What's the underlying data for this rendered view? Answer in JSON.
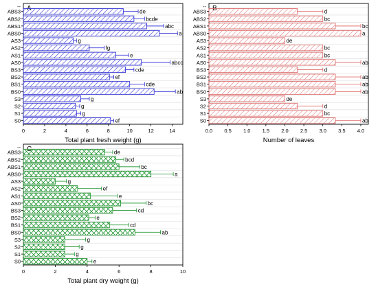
{
  "chart_data": [
    {
      "type": "bar",
      "orientation": "horizontal",
      "panel_label": "A",
      "top_label": "--",
      "xlabel": "Total plant fresh weight (g)",
      "xlim": [
        0,
        15
      ],
      "xticks": [
        "0",
        "2",
        "4",
        "6",
        "8",
        "10",
        "12",
        "14"
      ],
      "categories": [
        "ABS3",
        "ABS2",
        "ABS1",
        "ABS0",
        "AS3",
        "AS2",
        "AS1",
        "AS0",
        "BS3",
        "BS2",
        "BS1",
        "BS0",
        "S3",
        "S2",
        "S1",
        "S0"
      ],
      "values": [
        9.4,
        10.4,
        11.6,
        12.8,
        4.7,
        6.2,
        8.7,
        11.1,
        9.6,
        8.1,
        10.0,
        12.3,
        5.4,
        4.9,
        5.0,
        8.2
      ],
      "errors": [
        1.4,
        1.0,
        1.6,
        1.7,
        0.3,
        1.4,
        1.2,
        2.7,
        0.8,
        0.4,
        1.4,
        2.0,
        0.8,
        0.4,
        0.4,
        0.3
      ],
      "sig_labels": [
        "de",
        "bcde",
        "abc",
        "a",
        "g",
        "fg",
        "e",
        "abcd",
        "cde",
        "ef",
        "cde",
        "ab",
        "g",
        "g",
        "g",
        "ef"
      ],
      "colors": {
        "stroke": "#3a3ad8",
        "hatch": "#3a3ad8"
      },
      "hatch": "diagonal",
      "grid": true
    },
    {
      "type": "bar",
      "orientation": "horizontal",
      "panel_label": "B",
      "top_label": "--",
      "xlabel": "Number of leaves",
      "xlim": [
        0,
        4.2
      ],
      "xticks": [
        "0.0",
        "0.5",
        "1.0",
        "1.5",
        "2.0",
        "2.5",
        "3.0",
        "3.5",
        "4.0"
      ],
      "categories": [
        "ABS3",
        "ABS2",
        "ABS1",
        "ABS0",
        "AS3",
        "AS2",
        "AS1",
        "AS0",
        "BS3",
        "BS2",
        "BS1",
        "BS0",
        "S3",
        "S2",
        "S1",
        "S0"
      ],
      "values": [
        2.33,
        3.0,
        3.33,
        4.0,
        2.0,
        3.0,
        3.0,
        3.33,
        2.33,
        3.33,
        3.33,
        3.33,
        2.0,
        2.33,
        3.0,
        3.33
      ],
      "errors": [
        0.67,
        0.0,
        0.67,
        0.0,
        0.0,
        0.0,
        0.0,
        0.67,
        0.67,
        0.67,
        0.67,
        0.67,
        0.0,
        0.67,
        0.0,
        0.67
      ],
      "sig_labels": [
        "d",
        "bc",
        "bc",
        "a",
        "de",
        "bc",
        "bc",
        "ab",
        "d",
        "ab",
        "ab",
        "ab",
        "de",
        "d",
        "bc",
        "ab"
      ],
      "colors": {
        "stroke": "#e07070",
        "hatch": "#e07070"
      },
      "hatch": "diagonal",
      "grid": true
    },
    {
      "type": "bar",
      "orientation": "horizontal",
      "panel_label": "C",
      "top_label": "--",
      "xlabel": "Total plant dry weight (g)",
      "xlim": [
        0,
        10
      ],
      "xticks": [
        "0",
        "2",
        "4",
        "6",
        "8",
        "10"
      ],
      "categories": [
        "ABS3",
        "ABS2",
        "ABS1",
        "ABS0",
        "AS3",
        "AS2",
        "AS1",
        "AS0",
        "BS3",
        "BS2",
        "BS1",
        "BS0",
        "S3",
        "S2",
        "S1",
        "S0"
      ],
      "values": [
        5.1,
        5.8,
        6.0,
        8.0,
        2.0,
        3.4,
        4.2,
        6.1,
        5.6,
        4.1,
        5.4,
        7.0,
        2.6,
        2.6,
        2.6,
        4.0
      ],
      "errors": [
        0.5,
        0.5,
        1.3,
        1.4,
        0.7,
        1.5,
        1.7,
        1.6,
        1.5,
        0.4,
        1.2,
        1.6,
        1.3,
        0.9,
        0.6,
        0.3
      ],
      "sig_labels": [
        "de",
        "bcd",
        "bc",
        "a",
        "g",
        "ef",
        "e",
        "bc",
        "cd",
        "e",
        "cd",
        "ab",
        "g",
        "g",
        "g",
        "e"
      ],
      "colors": {
        "stroke": "#2a9a3a",
        "hatch": "#2a9a3a"
      },
      "hatch": "crosshatch",
      "grid": true
    }
  ]
}
